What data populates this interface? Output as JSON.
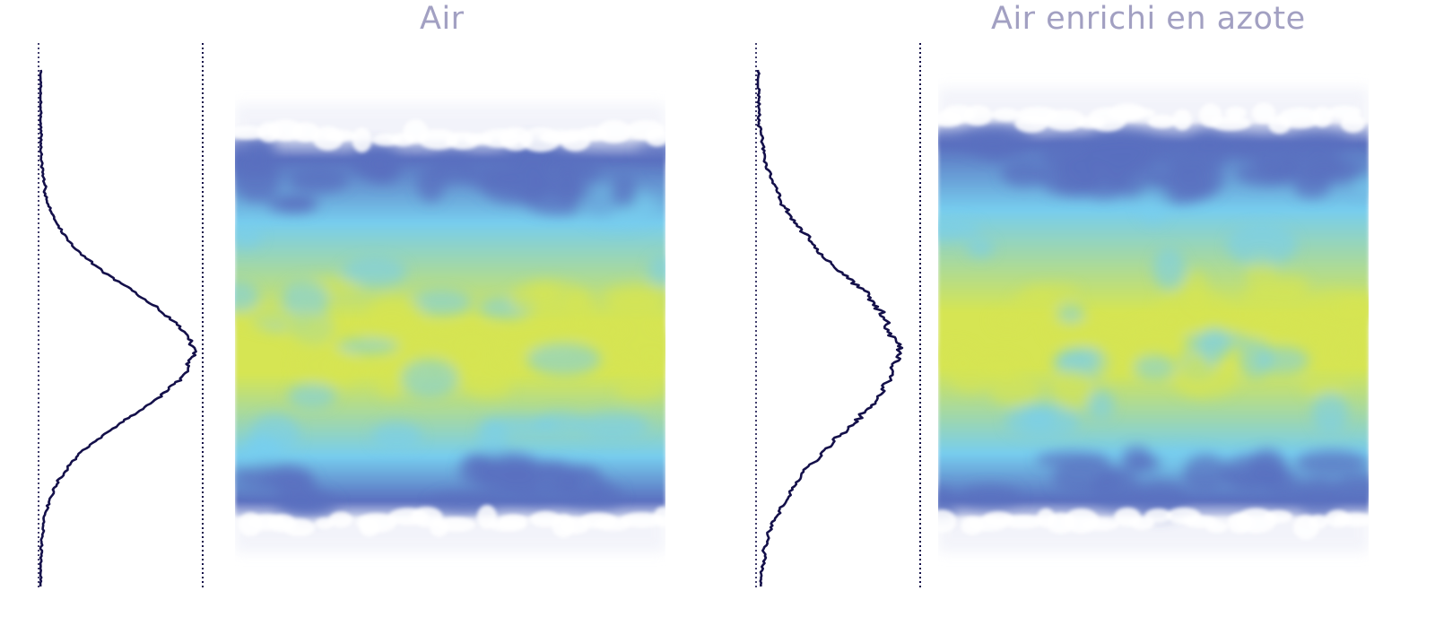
{
  "panels": [
    {
      "title": "Air",
      "profile": {
        "amplitude": 0.94,
        "width": 0.16,
        "noise": 0.05,
        "seed": 7
      },
      "image": {
        "band_top": 0.16,
        "band_bottom": 0.86,
        "seed": 11
      }
    },
    {
      "title": "Air enrichi en azote",
      "profile": {
        "amplitude": 0.86,
        "width": 0.21,
        "noise": 0.09,
        "seed": 23
      },
      "image": {
        "band_top": 0.13,
        "band_bottom": 0.86,
        "seed": 31
      }
    }
  ],
  "colors": {
    "profile_line": "#14104a",
    "dotted_line": "#14104a",
    "band_edge": "#5a6fbf",
    "band_mid": "#77cdee",
    "band_core": "#d6e552",
    "title_text": "#a2a0c2"
  }
}
